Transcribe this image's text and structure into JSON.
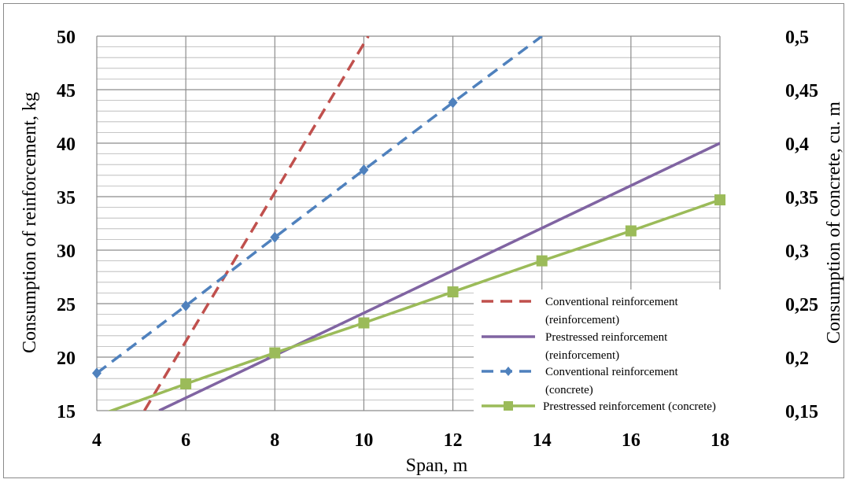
{
  "chart_data": {
    "type": "line",
    "xlabel": "Span, m",
    "ylabel": "Consumption of reinforcement, kg",
    "y2label": "Consumption of concrete, cu. m",
    "xlim": [
      4,
      18
    ],
    "ylim": [
      15,
      50
    ],
    "y2lim": [
      0.15,
      0.5
    ],
    "x_ticks": [
      "4",
      "6",
      "8",
      "10",
      "12",
      "14",
      "16",
      "18"
    ],
    "y_ticks": [
      "15",
      "20",
      "25",
      "30",
      "35",
      "40",
      "45",
      "50"
    ],
    "y2_ticks": [
      "0,15",
      "0,2",
      "0,25",
      "0,3",
      "0,35",
      "0,4",
      "0,45",
      "0,5"
    ],
    "grid": true,
    "legend_position": "bottom-right",
    "series": [
      {
        "name": "Conventional reinforcement (reinforcement)",
        "legend_lines": [
          "Conventional reinforcement",
          "(reinforcement)"
        ],
        "axis": "left",
        "color": "#c0504d",
        "style": "dashed",
        "marker": "none",
        "x": [
          5.07,
          10.1
        ],
        "y": [
          15,
          50
        ]
      },
      {
        "name": "Prestressed reinforcement (reinforcement)",
        "legend_lines": [
          "Prestressed reinforcement",
          "(reinforcement)"
        ],
        "axis": "left",
        "color": "#8064a2",
        "style": "solid",
        "marker": "none",
        "x": [
          5.4,
          18
        ],
        "y": [
          15,
          40
        ]
      },
      {
        "name": "Conventional reinforcement (concrete)",
        "legend_lines": [
          "Conventional reinforcement",
          "(concrete)"
        ],
        "axis": "right",
        "color": "#4f81bd",
        "style": "dashed",
        "marker": "diamond",
        "x": [
          4,
          6,
          8,
          10,
          12,
          14
        ],
        "y": [
          0.185,
          0.248,
          0.312,
          0.375,
          0.438,
          0.5
        ],
        "marker_x": [
          4,
          6,
          8,
          10,
          12
        ]
      },
      {
        "name": "Prestressed reinforcement (concrete)",
        "legend_lines": [
          "Prestressed reinforcement (concrete)"
        ],
        "axis": "right",
        "color": "#9bbb59",
        "style": "solid",
        "marker": "square",
        "x": [
          4,
          6,
          8,
          10,
          12,
          14,
          16,
          18
        ],
        "y": [
          0.145,
          0.175,
          0.204,
          0.232,
          0.261,
          0.29,
          0.318,
          0.347
        ],
        "marker_x": [
          6,
          8,
          10,
          12,
          14,
          16,
          18
        ]
      }
    ]
  }
}
